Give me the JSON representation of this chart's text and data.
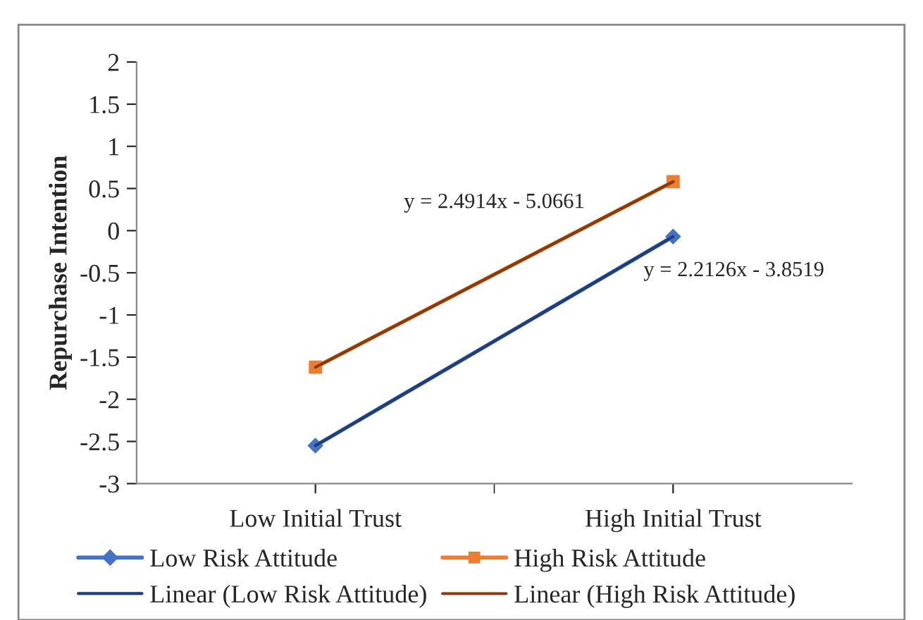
{
  "chart_data": {
    "type": "line",
    "ylabel": "Repurchase Intention",
    "categories": [
      "Low Initial Trust",
      "High Initial Trust"
    ],
    "series": [
      {
        "name": "Low Risk Attitude",
        "color": "#4472c4",
        "values": [
          -2.55,
          -0.07
        ],
        "marker": "diamond"
      },
      {
        "name": "High Risk Attitude",
        "color": "#ed7d31",
        "values": [
          -1.62,
          0.58
        ],
        "marker": "square"
      },
      {
        "name": "Linear (Low Risk Attitude)",
        "type": "line",
        "color": "#1f3d7a",
        "values": [
          -2.55,
          -0.07
        ]
      },
      {
        "name": "Linear (High Risk Attitude)",
        "type": "line",
        "color": "#8b3a0a",
        "values": [
          -1.62,
          0.58
        ]
      }
    ],
    "ylim": [
      -3,
      2
    ],
    "yticks": [
      -3,
      -2.5,
      -2,
      -1.5,
      -1,
      -0.5,
      0,
      0.5,
      1,
      1.5,
      2
    ],
    "annotations": [
      "y = 2.4914x - 5.0661",
      "y = 2.2126x - 3.8519"
    ],
    "grid": false,
    "legend": "bottom"
  }
}
